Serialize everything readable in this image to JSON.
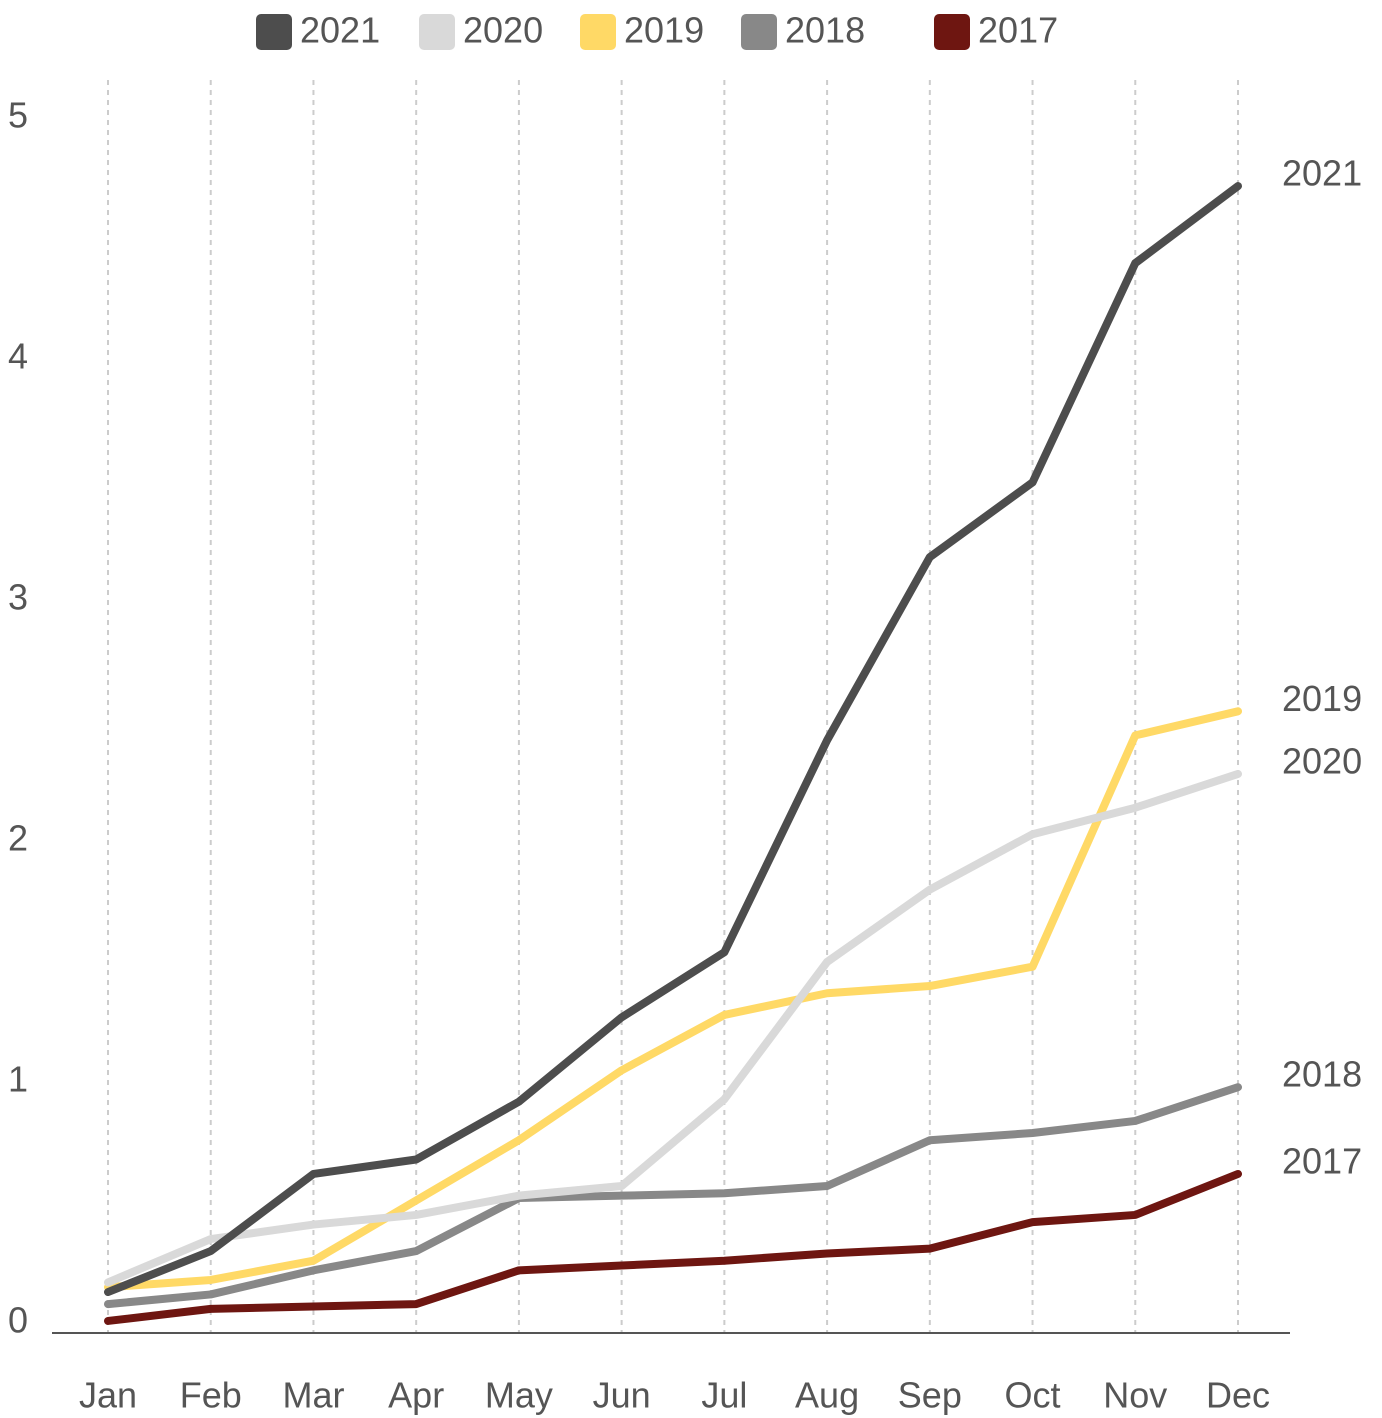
{
  "chart_data": {
    "type": "line",
    "categories": [
      "Jan",
      "Feb",
      "Mar",
      "Apr",
      "May",
      "Jun",
      "Jul",
      "Aug",
      "Sep",
      "Oct",
      "Nov",
      "Dec"
    ],
    "series": [
      {
        "name": "2021",
        "color": "#4d4d4d",
        "values": [
          0.17,
          0.34,
          0.66,
          0.72,
          0.96,
          1.31,
          1.58,
          2.46,
          3.22,
          3.53,
          4.44,
          4.76
        ]
      },
      {
        "name": "2020",
        "color": "#d9d9d9",
        "values": [
          0.21,
          0.39,
          0.45,
          0.49,
          0.57,
          0.61,
          0.97,
          1.54,
          1.84,
          2.07,
          2.18,
          2.32
        ]
      },
      {
        "name": "2019",
        "color": "#ffd966",
        "values": [
          0.19,
          0.22,
          0.3,
          0.55,
          0.8,
          1.09,
          1.32,
          1.41,
          1.44,
          1.52,
          2.48,
          2.58
        ]
      },
      {
        "name": "2018",
        "color": "#888888",
        "values": [
          0.12,
          0.16,
          0.26,
          0.34,
          0.56,
          0.57,
          0.58,
          0.61,
          0.8,
          0.83,
          0.88,
          1.02
        ]
      },
      {
        "name": "2017",
        "color": "#6e1611",
        "values": [
          0.05,
          0.1,
          0.11,
          0.12,
          0.26,
          0.28,
          0.3,
          0.33,
          0.35,
          0.46,
          0.49,
          0.66
        ]
      }
    ],
    "ylim": [
      0,
      5.2
    ],
    "yticks": [
      0,
      1,
      2,
      3,
      4,
      5
    ],
    "grid": "x",
    "legend": "top"
  }
}
